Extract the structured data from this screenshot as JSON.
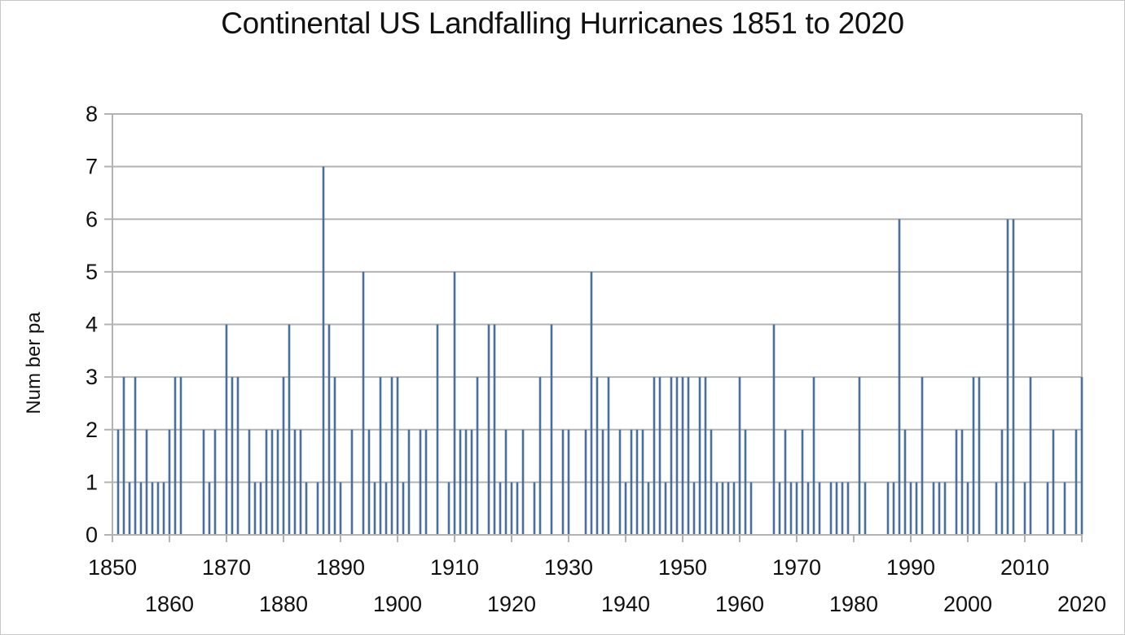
{
  "chart_data": {
    "type": "bar",
    "title": "Continental US Landfalling Hurricanes 1851 to 2020",
    "xlabel": "",
    "ylabel": "Num ber pa",
    "xlim": [
      1850,
      2020
    ],
    "ylim": [
      0,
      8
    ],
    "yticks": [
      0,
      1,
      2,
      3,
      4,
      5,
      6,
      7,
      8
    ],
    "xticks": [
      1850,
      1860,
      1870,
      1880,
      1890,
      1900,
      1910,
      1920,
      1930,
      1940,
      1950,
      1960,
      1970,
      1980,
      1990,
      2000,
      2010,
      2020
    ],
    "grid": true,
    "bar_color": "#4a6f9f",
    "x": [
      1851,
      1852,
      1853,
      1854,
      1855,
      1856,
      1857,
      1858,
      1859,
      1860,
      1861,
      1862,
      1863,
      1864,
      1865,
      1866,
      1867,
      1868,
      1869,
      1870,
      1871,
      1872,
      1873,
      1874,
      1875,
      1876,
      1877,
      1878,
      1879,
      1880,
      1881,
      1882,
      1883,
      1884,
      1885,
      1886,
      1887,
      1888,
      1889,
      1890,
      1891,
      1892,
      1893,
      1894,
      1895,
      1896,
      1897,
      1898,
      1899,
      1900,
      1901,
      1902,
      1903,
      1904,
      1905,
      1906,
      1907,
      1908,
      1909,
      1910,
      1911,
      1912,
      1913,
      1914,
      1915,
      1916,
      1917,
      1918,
      1919,
      1920,
      1921,
      1922,
      1923,
      1924,
      1925,
      1926,
      1927,
      1928,
      1929,
      1930,
      1931,
      1932,
      1933,
      1934,
      1935,
      1936,
      1937,
      1938,
      1939,
      1940,
      1941,
      1942,
      1943,
      1944,
      1945,
      1946,
      1947,
      1948,
      1949,
      1950,
      1951,
      1952,
      1953,
      1954,
      1955,
      1956,
      1957,
      1958,
      1959,
      1960,
      1961,
      1962,
      1963,
      1964,
      1965,
      1966,
      1967,
      1968,
      1969,
      1970,
      1971,
      1972,
      1973,
      1974,
      1975,
      1976,
      1977,
      1978,
      1979,
      1980,
      1981,
      1982,
      1983,
      1984,
      1985,
      1986,
      1987,
      1988,
      1989,
      1990,
      1991,
      1992,
      1993,
      1994,
      1995,
      1996,
      1997,
      1998,
      1999,
      2000,
      2001,
      2002,
      2003,
      2004,
      2005,
      2006,
      2007,
      2008,
      2009,
      2010,
      2011,
      2012,
      2013,
      2014,
      2015,
      2016,
      2017,
      2018,
      2019,
      2020
    ],
    "values": [
      2,
      3,
      1,
      3,
      1,
      2,
      1,
      1,
      1,
      2,
      3,
      3,
      0,
      0,
      0,
      2,
      1,
      2,
      0,
      4,
      3,
      3,
      0,
      2,
      1,
      1,
      2,
      2,
      2,
      3,
      4,
      2,
      2,
      1,
      0,
      1,
      7,
      4,
      3,
      1,
      0,
      2,
      0,
      5,
      2,
      1,
      3,
      1,
      3,
      3,
      1,
      2,
      0,
      2,
      2,
      0,
      4,
      0,
      1,
      5,
      2,
      2,
      2,
      3,
      0,
      4,
      4,
      1,
      2,
      1,
      1,
      2,
      0,
      1,
      3,
      0,
      4,
      0,
      2,
      2,
      0,
      0,
      2,
      5,
      3,
      2,
      3,
      0,
      2,
      1,
      2,
      2,
      2,
      1,
      3,
      3,
      1,
      3,
      3,
      3,
      3,
      1,
      3,
      3,
      2,
      1,
      1,
      1,
      1,
      3,
      2,
      1,
      0,
      0,
      0,
      4,
      1,
      2,
      1,
      1,
      2,
      1,
      3,
      1,
      0,
      1,
      1,
      1,
      1,
      0,
      3,
      1,
      0,
      0,
      0,
      1,
      1,
      6,
      2,
      1,
      1,
      3,
      0,
      1,
      1,
      1,
      0,
      2,
      2,
      1,
      3,
      3,
      0,
      0,
      1,
      2,
      6,
      6,
      0,
      1,
      3,
      0,
      0,
      1,
      2,
      0,
      1,
      0,
      2,
      3
    ]
  }
}
